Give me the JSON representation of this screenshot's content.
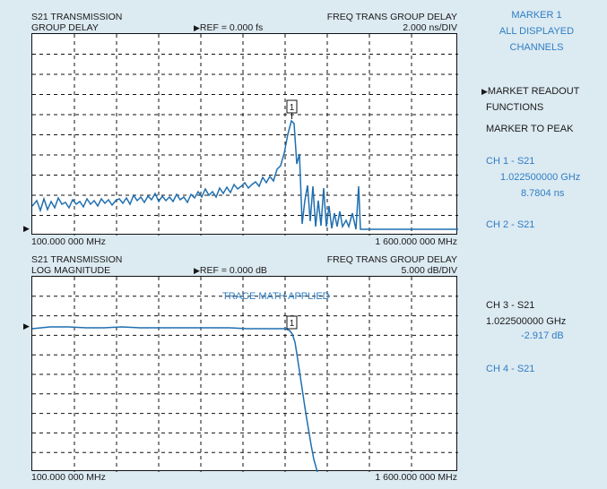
{
  "top_plot": {
    "title_line1": "S21 TRANSMISSION",
    "title_line2": "GROUP DELAY",
    "ref": "REF = 0.000 fs",
    "mode": "FREQ TRANS GROUP DELAY",
    "scale": "2.000 ns/DIV",
    "start_freq": "100.000 000 MHz",
    "stop_freq": "1 600.000 000 MHz",
    "marker_label": "1"
  },
  "bottom_plot": {
    "title_line1": "S21 TRANSMISSION",
    "title_line2": "LOG MAGNITUDE",
    "ref": "REF = 0.000 dB",
    "mode": "FREQ TRANS GROUP DELAY",
    "scale": "5.000 dB/DIV",
    "note": "TRACE MATH APPLIED",
    "start_freq": "100.000 000 MHz",
    "stop_freq": "1 600.000 000 MHz",
    "marker_label": "1"
  },
  "sidebar": {
    "marker_title_1": "MARKER 1",
    "marker_title_2": "ALL DISPLAYED",
    "marker_title_3": "CHANNELS",
    "readout_1": "MARKET READOUT",
    "readout_2": "FUNCTIONS",
    "marker_to_peak": "MARKER TO PEAK",
    "ch1_label": "CH 1  -  S21",
    "ch1_freq": "1.022500000 GHz",
    "ch1_value": "8.7804 ns",
    "ch2_label": "CH  2  -  S21",
    "ch3_label": "CH  3  -  S21",
    "ch3_freq": "1.022500000 GHz",
    "ch3_value": "-2.917 dB",
    "ch4_label": "CH  4  -  S21"
  },
  "colors": {
    "background": "#dceaf2",
    "trace": "#1f6fb0",
    "accent_text": "#2f7ec2"
  },
  "icons": {
    "ref_arrow": "right-triangle-icon",
    "menu_arrow": "right-triangle-icon"
  }
}
